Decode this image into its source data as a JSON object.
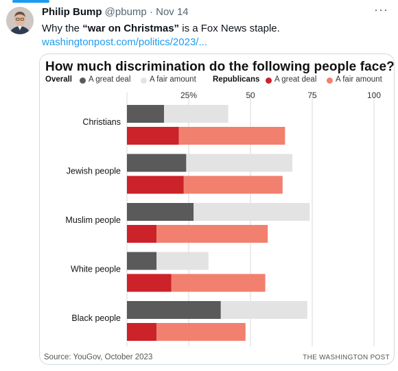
{
  "tweet": {
    "author": "Philip Bump",
    "handle": "@pbump",
    "separator": "·",
    "date": "Nov 14",
    "text_before": "Why the ",
    "text_bold": "“war on Christmas”",
    "text_after": " is a Fox News staple.",
    "link": "washingtonpost.com/politics/2023/...",
    "more_icon": "more-icon"
  },
  "chart_data": {
    "type": "bar",
    "title": "How much discrimination do the following people face?",
    "legend": {
      "overall_label": "Overall",
      "republicans_label": "Republicans",
      "items": [
        "A great deal",
        "A fair amount",
        "A great deal",
        "A fair amount"
      ]
    },
    "categories": [
      "Christians",
      "Jewish people",
      "Muslim people",
      "White people",
      "Black people"
    ],
    "series": [
      {
        "name": "Overall – A great deal",
        "values": [
          15,
          24,
          27,
          12,
          38
        ],
        "color": "#5a5a5a"
      },
      {
        "name": "Overall – A fair amount",
        "values": [
          26,
          43,
          47,
          21,
          35
        ],
        "color": "#e3e3e3"
      },
      {
        "name": "Republicans – A great deal",
        "values": [
          21,
          23,
          12,
          18,
          12
        ],
        "color": "#cc2229"
      },
      {
        "name": "Republicans – A fair amount",
        "values": [
          43,
          40,
          45,
          38,
          36
        ],
        "color": "#f2806f"
      }
    ],
    "xticks": [
      "25%",
      "50",
      "75",
      "100"
    ],
    "xtick_values": [
      25,
      50,
      75,
      100
    ],
    "xlim": [
      0,
      100
    ],
    "grid": true,
    "source": "Source: YouGov, October 2023",
    "brand": "THE WASHINGTON POST"
  }
}
